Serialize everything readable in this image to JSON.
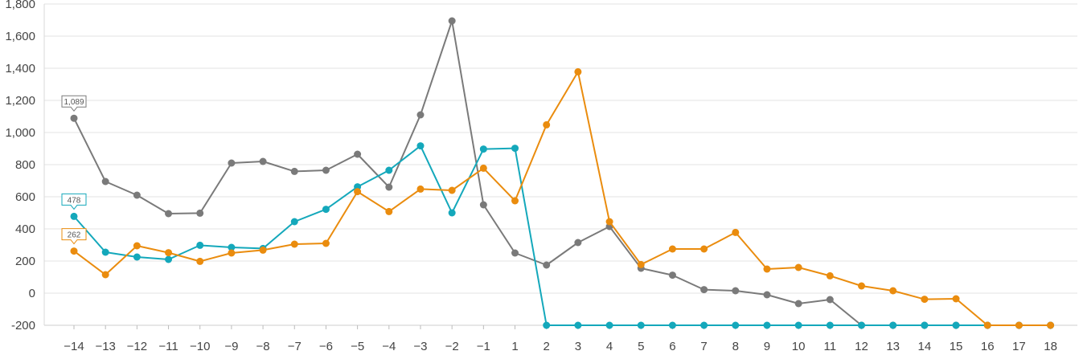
{
  "chart_data": {
    "type": "line",
    "title": "",
    "xlabel": "",
    "ylabel": "",
    "ylim": [
      -200,
      1800
    ],
    "y_ticks": [
      -200,
      0,
      200,
      400,
      600,
      800,
      1000,
      1200,
      1400,
      1600,
      1800
    ],
    "y_tick_labels": [
      "-200",
      "0",
      "200",
      "400",
      "600",
      "800",
      "1,000",
      "1,200",
      "1,400",
      "1,600",
      "1,800"
    ],
    "categories": [
      "−14",
      "−13",
      "−12",
      "−11",
      "−10",
      "−9",
      "−8",
      "−7",
      "−6",
      "−5",
      "−4",
      "−3",
      "−2",
      "−1",
      "1",
      "2",
      "3",
      "4",
      "5",
      "6",
      "7",
      "8",
      "9",
      "10",
      "11",
      "12",
      "13",
      "14",
      "15",
      "16",
      "17",
      "18"
    ],
    "grid": true,
    "series": [
      {
        "color": "#7a7a7a",
        "values": [
          1089,
          695,
          610,
          495,
          498,
          810,
          820,
          758,
          765,
          865,
          660,
          1110,
          1695,
          550,
          250,
          175,
          315,
          415,
          155,
          112,
          22,
          15,
          -10,
          -65,
          -40,
          -200,
          -200,
          -200,
          -200,
          -200,
          -200,
          -200
        ],
        "callout": {
          "index": 0,
          "text": "1,089"
        }
      },
      {
        "color": "#14a8bb",
        "values": [
          478,
          255,
          225,
          210,
          298,
          285,
          278,
          445,
          522,
          662,
          765,
          917,
          500,
          897,
          902,
          -200,
          -200,
          -200,
          -200,
          -200,
          -200,
          -200,
          -200,
          -200,
          -200,
          -200,
          -200,
          -200,
          -200,
          -200,
          -200,
          -200
        ],
        "callout": {
          "index": 0,
          "text": "478"
        }
      },
      {
        "color": "#ea8c0e",
        "values": [
          262,
          115,
          295,
          252,
          198,
          250,
          268,
          305,
          310,
          632,
          508,
          648,
          640,
          778,
          575,
          1048,
          1378,
          445,
          178,
          275,
          275,
          378,
          150,
          160,
          108,
          45,
          15,
          -38,
          -35,
          -200,
          -200,
          -200
        ],
        "callout": {
          "index": 0,
          "text": "262"
        }
      }
    ]
  }
}
